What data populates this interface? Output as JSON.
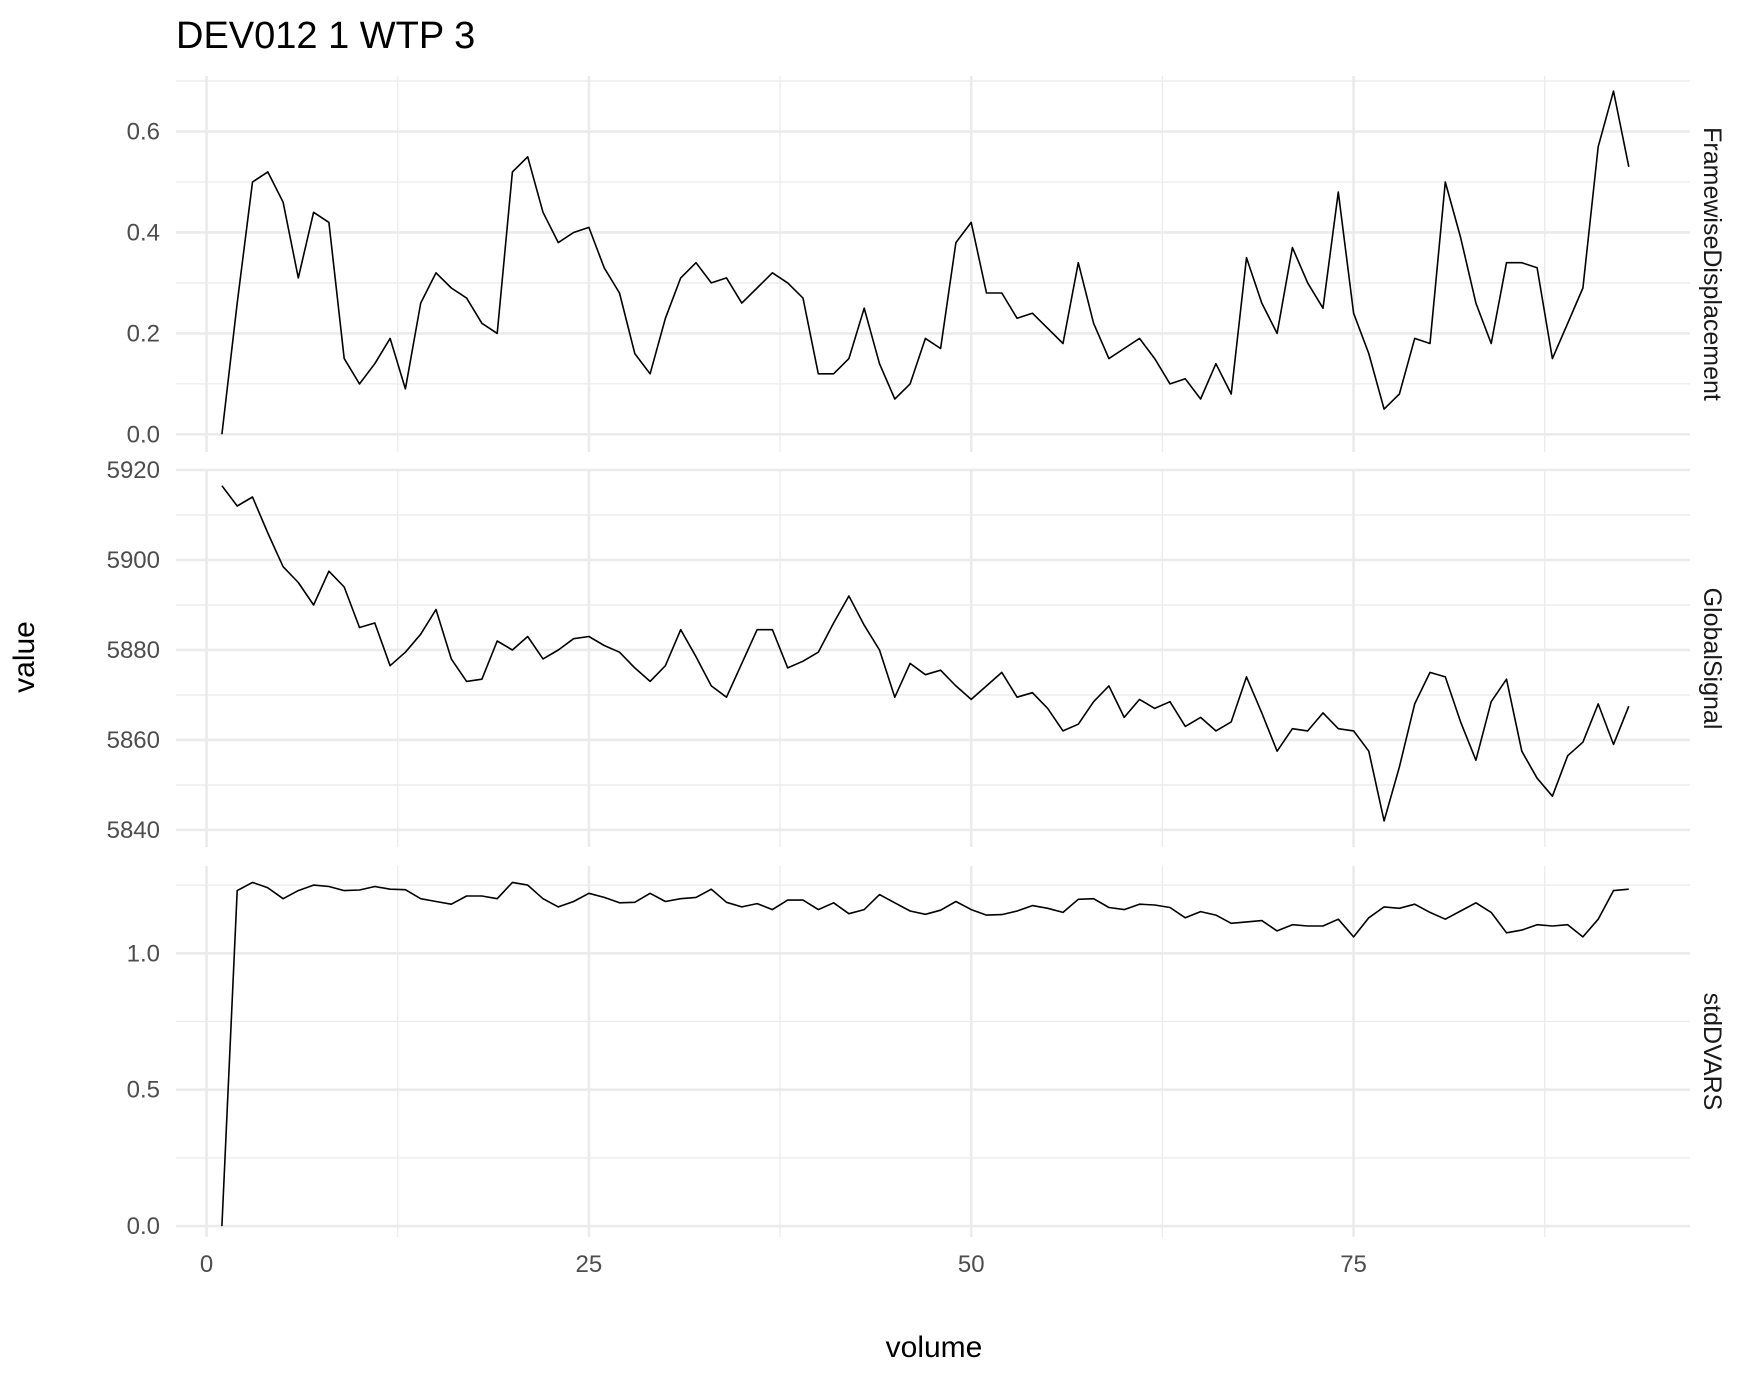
{
  "chart_data": {
    "type": "line",
    "title": "DEV012  1  WTP  3",
    "xlabel": "volume",
    "ylabel": "value",
    "xlim": [
      -2,
      97
    ],
    "x_ticks": [
      0,
      25,
      50,
      75
    ],
    "x_tick_labels": [
      "0",
      "25",
      "50",
      "75"
    ],
    "grid": true,
    "line_color": "#000000",
    "grid_color": "#ebebeb",
    "panels": [
      {
        "name": "FramewiseDisplacement",
        "ylim": [
          -0.035,
          0.71
        ],
        "y_ticks": [
          0.0,
          0.2,
          0.4,
          0.6
        ],
        "y_tick_labels": [
          "0.0",
          "0.2",
          "0.4",
          "0.6"
        ],
        "x": [
          1,
          2,
          3,
          4,
          5,
          6,
          7,
          8,
          9,
          10,
          11,
          12,
          13,
          14,
          15,
          16,
          17,
          18,
          19,
          20,
          21,
          22,
          23,
          24,
          25,
          26,
          27,
          28,
          29,
          30,
          31,
          32,
          33,
          34,
          35,
          36,
          37,
          38,
          39,
          40,
          41,
          42,
          43,
          44,
          45,
          46,
          47,
          48,
          49,
          50,
          51,
          52,
          53,
          54,
          55,
          56,
          57,
          58,
          59,
          60,
          61,
          62,
          63,
          64,
          65,
          66,
          67,
          68,
          69,
          70,
          71,
          72,
          73,
          74,
          75,
          76,
          77,
          78,
          79,
          80,
          81,
          82,
          83,
          84,
          85,
          86,
          87,
          88,
          89,
          90,
          91,
          92,
          93
        ],
        "values": [
          0.0,
          0.26,
          0.5,
          0.52,
          0.46,
          0.31,
          0.44,
          0.42,
          0.15,
          0.1,
          0.14,
          0.19,
          0.09,
          0.26,
          0.32,
          0.29,
          0.27,
          0.22,
          0.2,
          0.52,
          0.55,
          0.44,
          0.38,
          0.4,
          0.41,
          0.33,
          0.28,
          0.16,
          0.12,
          0.23,
          0.31,
          0.34,
          0.3,
          0.31,
          0.26,
          0.29,
          0.32,
          0.3,
          0.27,
          0.12,
          0.12,
          0.15,
          0.25,
          0.14,
          0.07,
          0.1,
          0.19,
          0.17,
          0.38,
          0.42,
          0.28,
          0.28,
          0.23,
          0.24,
          0.21,
          0.18,
          0.34,
          0.22,
          0.15,
          0.17,
          0.19,
          0.15,
          0.1,
          0.11,
          0.07,
          0.14,
          0.08,
          0.35,
          0.26,
          0.2,
          0.37,
          0.3,
          0.25,
          0.48,
          0.24,
          0.16,
          0.05,
          0.08,
          0.19,
          0.18,
          0.5,
          0.39,
          0.26,
          0.18,
          0.34,
          0.34,
          0.33,
          0.15,
          0.22,
          0.29,
          0.57,
          0.68,
          0.53
        ]
      },
      {
        "name": "GlobalSignal",
        "ylim": [
          5836.2,
          5920.0
        ],
        "y_ticks": [
          5840,
          5860,
          5880,
          5900,
          5920
        ],
        "y_tick_labels": [
          "5840",
          "5860",
          "5880",
          "5900",
          "5920"
        ],
        "x": [
          1,
          2,
          3,
          4,
          5,
          6,
          7,
          8,
          9,
          10,
          11,
          12,
          13,
          14,
          15,
          16,
          17,
          18,
          19,
          20,
          21,
          22,
          23,
          24,
          25,
          26,
          27,
          28,
          29,
          30,
          31,
          32,
          33,
          34,
          35,
          36,
          37,
          38,
          39,
          40,
          41,
          42,
          43,
          44,
          45,
          46,
          47,
          48,
          49,
          50,
          51,
          52,
          53,
          54,
          55,
          56,
          57,
          58,
          59,
          60,
          61,
          62,
          63,
          64,
          65,
          66,
          67,
          68,
          69,
          70,
          71,
          72,
          73,
          74,
          75,
          76,
          77,
          78,
          79,
          80,
          81,
          82,
          83,
          84,
          85,
          86,
          87,
          88,
          89,
          90,
          91,
          92,
          93
        ],
        "values": [
          5916.5,
          5912,
          5914,
          5906,
          5898.5,
          5895,
          5890,
          5897.5,
          5894,
          5885,
          5886,
          5876.5,
          5879.5,
          5883.5,
          5889,
          5878,
          5873,
          5873.5,
          5882,
          5880,
          5883,
          5878,
          5880,
          5882.5,
          5883,
          5881,
          5879.5,
          5876,
          5873,
          5876.5,
          5884.5,
          5878.5,
          5872,
          5869.5,
          5877,
          5884.5,
          5884.5,
          5876,
          5877.5,
          5879.5,
          5886,
          5892,
          5885.5,
          5880,
          5869.5,
          5877,
          5874.5,
          5875.5,
          5872,
          5869,
          5872,
          5875,
          5869.5,
          5870.5,
          5867,
          5862,
          5863.5,
          5868.5,
          5872,
          5865,
          5869,
          5867,
          5868.5,
          5863,
          5865,
          5862,
          5864,
          5874,
          5866,
          5857.5,
          5862.5,
          5862,
          5866,
          5862.5,
          5862,
          5857.5,
          5842,
          5854,
          5868,
          5875,
          5874,
          5864,
          5855.5,
          5868.5,
          5873.5,
          5857.5,
          5851.5,
          5847.5,
          5856.5,
          5859.5,
          5868,
          5859,
          5867.5
        ]
      },
      {
        "name": "stdDVARS",
        "ylim": [
          -0.04,
          1.32
        ],
        "y_ticks": [
          0.0,
          0.5,
          1.0
        ],
        "y_tick_labels": [
          "0.0",
          "0.5",
          "1.0"
        ],
        "x": [
          1,
          2,
          3,
          4,
          5,
          6,
          7,
          8,
          9,
          10,
          11,
          12,
          13,
          14,
          15,
          16,
          17,
          18,
          19,
          20,
          21,
          22,
          23,
          24,
          25,
          26,
          27,
          28,
          29,
          30,
          31,
          32,
          33,
          34,
          35,
          36,
          37,
          38,
          39,
          40,
          41,
          42,
          43,
          44,
          45,
          46,
          47,
          48,
          49,
          50,
          51,
          52,
          53,
          54,
          55,
          56,
          57,
          58,
          59,
          60,
          61,
          62,
          63,
          64,
          65,
          66,
          67,
          68,
          69,
          70,
          71,
          72,
          73,
          74,
          75,
          76,
          77,
          78,
          79,
          80,
          81,
          82,
          83,
          84,
          85,
          86,
          87,
          88,
          89,
          90,
          91,
          92,
          93
        ],
        "values": [
          0.0,
          1.23,
          1.26,
          1.24,
          1.2,
          1.23,
          1.25,
          1.245,
          1.23,
          1.232,
          1.245,
          1.235,
          1.233,
          1.2,
          1.19,
          1.18,
          1.21,
          1.21,
          1.2,
          1.26,
          1.25,
          1.2,
          1.17,
          1.19,
          1.22,
          1.205,
          1.185,
          1.187,
          1.22,
          1.19,
          1.2,
          1.205,
          1.235,
          1.187,
          1.17,
          1.182,
          1.16,
          1.195,
          1.195,
          1.16,
          1.185,
          1.145,
          1.16,
          1.215,
          1.185,
          1.155,
          1.143,
          1.158,
          1.19,
          1.16,
          1.14,
          1.142,
          1.155,
          1.175,
          1.165,
          1.15,
          1.198,
          1.2,
          1.168,
          1.16,
          1.18,
          1.177,
          1.168,
          1.13,
          1.153,
          1.14,
          1.11,
          1.115,
          1.12,
          1.082,
          1.105,
          1.1,
          1.1,
          1.125,
          1.06,
          1.13,
          1.17,
          1.165,
          1.18,
          1.15,
          1.125,
          1.155,
          1.185,
          1.15,
          1.075,
          1.085,
          1.105,
          1.1,
          1.105,
          1.06,
          1.125,
          1.23,
          1.235
        ]
      }
    ]
  }
}
